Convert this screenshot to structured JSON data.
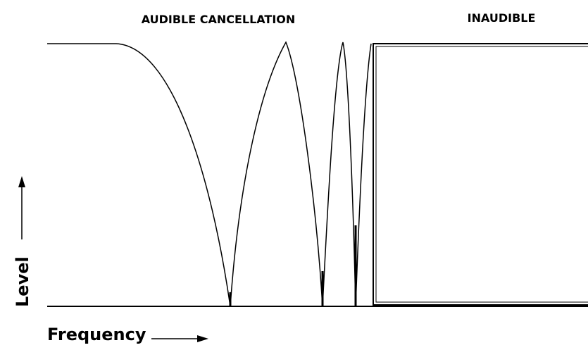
{
  "header": {
    "left_label": "AUDIBLE CANCELLATION",
    "right_label": "INAUDIBLE"
  },
  "axes": {
    "y_label": "Level",
    "x_label": "Frequency"
  }
}
